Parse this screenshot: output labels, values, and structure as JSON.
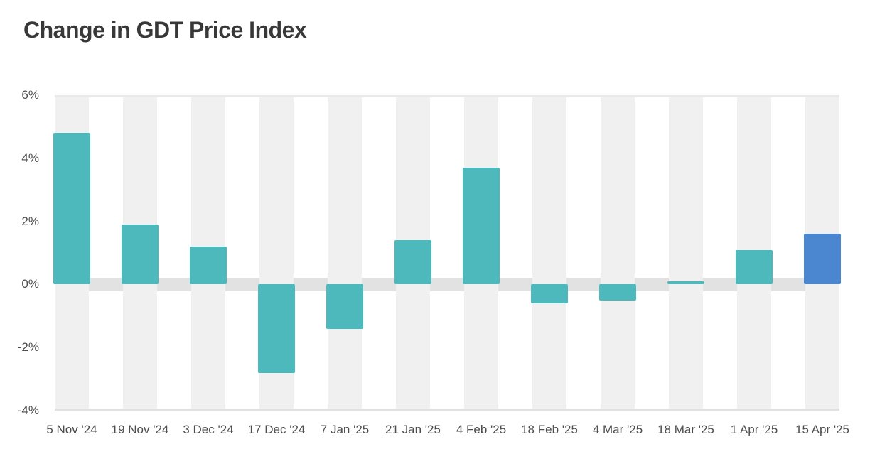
{
  "colors": {
    "teal": "#4db9bc",
    "blue": "#4b87d1",
    "stripe": "#f0f0f0",
    "zero_band": "#e2e2e2",
    "grid_top": "#e9e9e9",
    "grid_bottom": "#e1e1e1",
    "title_text": "#383838",
    "tick_text": "#4d4d4d"
  },
  "chart_data": {
    "type": "bar",
    "title": "Change in GDT Price Index",
    "xlabel": "",
    "ylabel": "",
    "categories": [
      "5 Nov '24",
      "19 Nov '24",
      "3 Dec '24",
      "17 Dec '24",
      "7 Jan '25",
      "21 Jan '25",
      "4 Feb '25",
      "18 Feb '25",
      "4 Mar '25",
      "18 Mar '25",
      "1 Apr '25",
      "15 Apr '25"
    ],
    "values": [
      4.8,
      1.9,
      1.2,
      -2.8,
      -1.4,
      1.4,
      3.7,
      -0.6,
      -0.5,
      0.1,
      1.1,
      1.6
    ],
    "bar_colors": [
      "teal",
      "teal",
      "teal",
      "teal",
      "teal",
      "teal",
      "teal",
      "teal",
      "teal",
      "teal",
      "teal",
      "blue"
    ],
    "ylim": [
      -4,
      6
    ],
    "yticks": [
      6,
      4,
      2,
      0,
      -2,
      -4
    ],
    "ytick_labels": [
      "6%",
      "4%",
      "2%",
      "0%",
      "-2%",
      "-4%"
    ],
    "legend": "none",
    "grid": "top and bottom border lines, thick gray band at zero, light gray vertical background band behind each category"
  }
}
